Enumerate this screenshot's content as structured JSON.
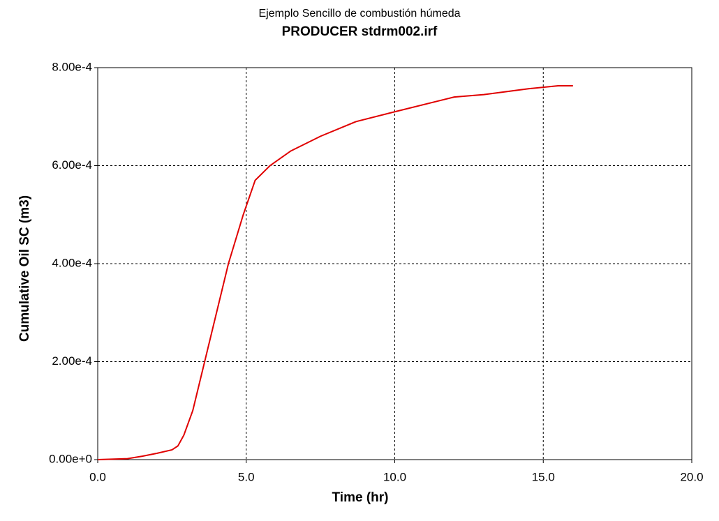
{
  "chart_data": {
    "type": "line",
    "title": "Ejemplo Sencillo de combustión húmeda",
    "subtitle": "PRODUCER stdrm002.irf",
    "x_label": "Time (hr)",
    "y_label": "Cumulative Oil SC (m3)",
    "x": [
      0,
      1.0,
      1.5,
      2.0,
      2.5,
      2.7,
      2.9,
      3.2,
      3.6,
      4.0,
      4.4,
      4.9,
      5.3,
      5.8,
      6.5,
      7.5,
      8.7,
      10.0,
      12.0,
      13.0,
      14.5,
      15.5,
      16.0
    ],
    "series": [
      {
        "name": "PRODUCER stdrm002.irf",
        "color": "#e00000",
        "values": [
          0,
          2e-06,
          7e-06,
          1.3e-05,
          2e-05,
          2.8e-05,
          5e-05,
          0.0001,
          0.0002,
          0.0003,
          0.0004,
          0.0005,
          0.00057,
          0.0006,
          0.00063,
          0.00066,
          0.00069,
          0.00071,
          0.00074,
          0.000745,
          0.000757,
          0.000763,
          0.000763
        ]
      }
    ],
    "xlim": [
      0,
      20
    ],
    "xticks": [
      {
        "value": 0,
        "label": "0.0"
      },
      {
        "value": 5,
        "label": "5.0"
      },
      {
        "value": 10,
        "label": "10.0"
      },
      {
        "value": 15,
        "label": "15.0"
      },
      {
        "value": 20,
        "label": "20.0"
      }
    ],
    "ylim": [
      0,
      0.0008
    ],
    "yticks": [
      {
        "value": 0,
        "label": "0.00e+0"
      },
      {
        "value": 0.0002,
        "label": "2.00e-4"
      },
      {
        "value": 0.0004,
        "label": "4.00e-4"
      },
      {
        "value": 0.0006,
        "label": "6.00e-4"
      },
      {
        "value": 0.0008,
        "label": "8.00e-4"
      }
    ],
    "grid": true
  }
}
